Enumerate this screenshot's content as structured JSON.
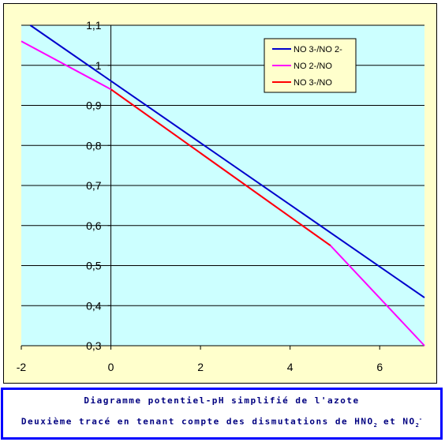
{
  "chart_data": {
    "type": "line",
    "title": "",
    "xlabel": "",
    "ylabel": "",
    "xlim": [
      -2,
      7
    ],
    "ylim": [
      0.3,
      1.1
    ],
    "x_ticks": [
      -2,
      0,
      2,
      4,
      6
    ],
    "x_tick_labels": [
      "-2",
      "0",
      "2",
      "4",
      "6"
    ],
    "y_ticks": [
      0.3,
      0.4,
      0.5,
      0.6,
      0.7,
      0.8,
      0.9,
      1.0,
      1.1
    ],
    "y_tick_labels": [
      "0,3",
      "0,4",
      "0,5",
      "0,6",
      "0,7",
      "0,8",
      "0,9",
      "1",
      "1,1"
    ],
    "grid": "horizontal",
    "legend_position": "top-right",
    "plot_background": "#ccffff",
    "chart_background": "#ffffcc",
    "series": [
      {
        "name": "NO 3-/NO 2-",
        "color": "#0000cc",
        "x": [
          -1.8,
          7
        ],
        "y": [
          1.1,
          0.42
        ]
      },
      {
        "name": "NO 2-/NO",
        "color": "#ff00ff",
        "x": [
          -2,
          0,
          4.9,
          7
        ],
        "y": [
          1.06,
          0.94,
          0.55,
          0.3
        ]
      },
      {
        "name": "NO 3-/NO",
        "color": "#ff0000",
        "x": [
          0,
          4.9
        ],
        "y": [
          0.94,
          0.55
        ]
      }
    ]
  },
  "caption": {
    "line1": "Diagramme potentiel-pH simplifié de l'azote",
    "line2_prefix": "Deuxième tracé en tenant compte des dismutations de HNO",
    "line2_sub1": "2",
    "line2_mid": " et NO",
    "line2_sub2": "2",
    "line2_sup2": "-"
  }
}
